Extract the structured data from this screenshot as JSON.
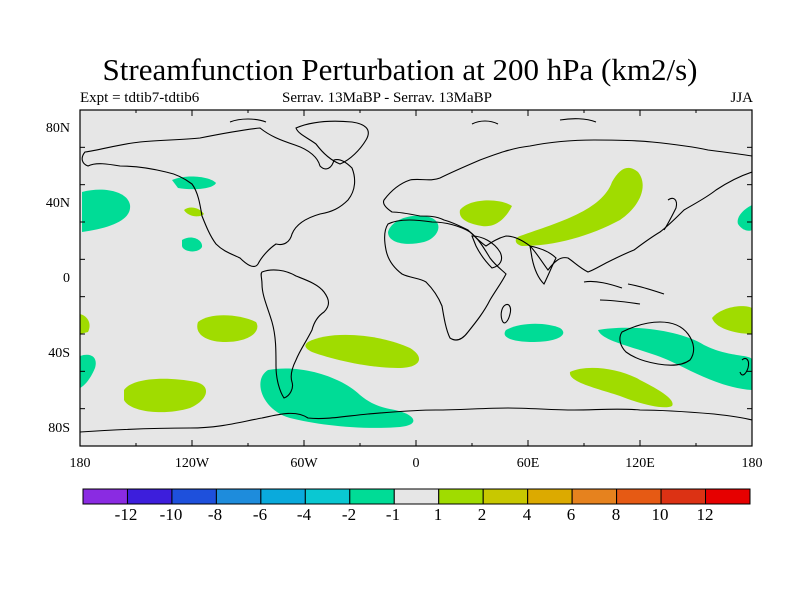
{
  "title": "Streamfunction Perturbation at 200 hPa (km2/s)",
  "subtitle_left": "Expt = tdtib7-tdtib6",
  "subtitle_center": "Serrav.   13MaBP - Serrav.   13MaBP",
  "subtitle_right": "JJA",
  "lat_ticks": [
    "80N",
    "40N",
    "0",
    "40S",
    "80S"
  ],
  "lon_ticks": [
    "180",
    "120W",
    "60W",
    "0",
    "60E",
    "120E",
    "180"
  ],
  "colorbar": {
    "labels": [
      "-12",
      "-10",
      "-8",
      "-6",
      "-4",
      "-2",
      "-1",
      "1",
      "2",
      "4",
      "6",
      "8",
      "10",
      "12"
    ],
    "colors": [
      "#8a2be2",
      "#3d1edc",
      "#1e50dc",
      "#1e8cdc",
      "#0aaadc",
      "#0ac8d2",
      "#00dc96",
      "#e6e6e6",
      "#a0dc00",
      "#c8c800",
      "#dcaa00",
      "#e6821e",
      "#e65a14",
      "#dc3214",
      "#e60000"
    ]
  },
  "colors": {
    "background": "#e6e6e6",
    "negative_fill": "#00dc96",
    "positive_fill": "#a0dc00",
    "coast": "#000000"
  }
}
